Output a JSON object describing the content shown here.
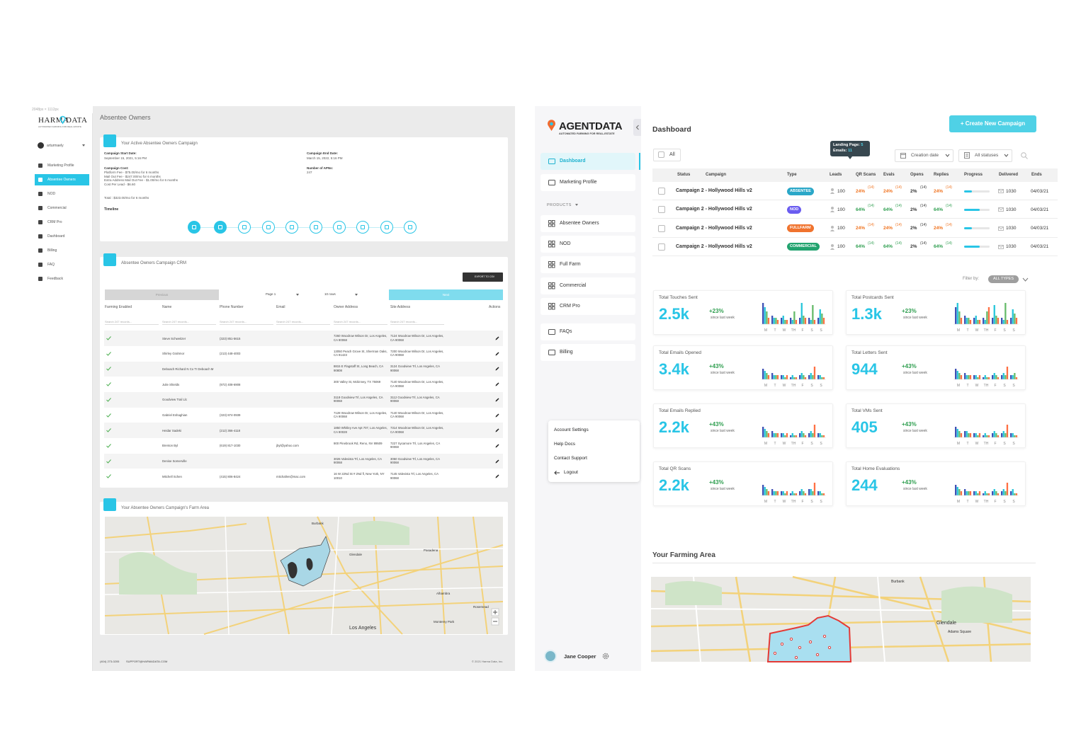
{
  "left_app": {
    "size_note": "2048px × 1112px",
    "logo_left": "HARMA",
    "logo_right": "DATA",
    "tagline": "AUTOMATED FARMING FOR REAL ESTATE",
    "user": "arturmaely",
    "nav": [
      "Marketing Profile",
      "Absentee Owners",
      "NOD",
      "Commercial",
      "CRM Pro",
      "Dashboard",
      "Billing",
      "FAQ",
      "Feedback"
    ],
    "page_title": "Absentee Owners",
    "campaign": {
      "title": "Your Active Absentee Owners Campaign",
      "start_label": "Campaign Start Date:",
      "start": "September 15, 2021, 5:16 PM",
      "end_label": "Campaign End Date:",
      "end": "March 15, 2022, 5:16 PM",
      "cost_label": "Campaign Cost:",
      "cost_lines": [
        "Platform Fee - $75.00/mo for 6 months",
        "Mail Out Fee - $247.00/mo for 6 months",
        "Extra Address Mail Out Fee - $1.00/mo for 6 months",
        "Cost Per Lead - $6.60"
      ],
      "apns_label": "Number of APNs:",
      "apns": "247",
      "total": "Total : $323.00/mo for 6 months",
      "timeline": "Timeline"
    },
    "crm": {
      "title": "Absentee Owners Campaign CRM",
      "export": "EXPORT TO CSV",
      "previous": "Previous",
      "page": "Page 1",
      "page_size": "10 rows",
      "next": "Next",
      "columns": [
        "Farming Enabled",
        "Name",
        "Phone Number",
        "Email",
        "Owner Address",
        "Site Address"
      ],
      "actions": "Actions",
      "search": "Search 247 records...",
      "rows": [
        {
          "name": "Steve Schweitzer",
          "phone": "(323) 851-5615",
          "owner_address": "7260 Woodrow Wilson Dr, Los Angeles, CA 90068",
          "site_address": "7124 Woodrow Wilson Dr, Los Angeles, CA 90068"
        },
        {
          "name": "Shirley Grahmor",
          "phone": "(213) 448-4003",
          "owner_address": "13050 Peach Grove St, Sherman Oaks, CA 91423",
          "site_address": "7200 Woodrow Wilson Dr, Los Angeles, CA 90068"
        },
        {
          "name": "Deboach Richard N Co Tr Deboach M",
          "owner_address": "8815 E Flagstaff St, Long Beach, CA 90808",
          "site_address": "3124 Goodview Trl, Los Angeles, CA 90068"
        },
        {
          "name": "Julie Shields",
          "phone": "(972) 408-6908",
          "owner_address": "300 Valley St, Mckinney, TX 75069",
          "site_address": "7140 Woodrow Wilson Dr, Los Angeles, CA 90068"
        },
        {
          "name": "Goodview Trail Llc",
          "owner_address": "3118 Goodview Trl, Los Angeles, CA 90068",
          "site_address": "3112 Goodview Trl, Los Angeles, CA 90068"
        },
        {
          "name": "Gabriel Eshaghian",
          "phone": "(323) 874-0939",
          "owner_address": "7128 Woodrow Wilson Dr, Los Angeles, CA 90068",
          "site_address": "7140 Woodrow Wilson Dr, Los Angeles, CA 90068"
        },
        {
          "name": "Heidar Sadeki",
          "phone": "(212) 366-4118",
          "owner_address": "1850 Whitley Ave Apt 707, Los Angeles, CA 90028",
          "site_address": "7314 Woodrow Wilson Dr, Los Angeles, CA 90068"
        },
        {
          "name": "Brenton Byl",
          "phone": "(619) 817-1030",
          "email": "jbyl@yahoo.com",
          "owner_address": "900 Pinebrook Rd, Reno, NV 89509",
          "site_address": "7227 Sycamore Trl, Los Angeles, CA 90068"
        },
        {
          "name": "Denise Somerville",
          "owner_address": "3026 Valevista Trl, Los Angeles, CA 90068",
          "site_address": "3050 Goodview Trl, Los Angeles, CA 90068"
        },
        {
          "name": "Mitchell Schen",
          "phone": "(415) 806-8424",
          "email": "mitchallen@mac.com",
          "owner_address": "16 W 22Nd St # 2Nd fl, New York, NY 10010",
          "site_address": "7145 Valevista Trl, Los Angeles, CA 90068"
        }
      ]
    },
    "map": {
      "title": "Your Absentee Owners Campaign's Farm Area",
      "labels": [
        "Burbank",
        "Glendale",
        "Pasadena",
        "Alhambra",
        "Monterey Park",
        "Rosemead",
        "Los Angeles"
      ]
    },
    "footer": {
      "phone": "(404) 273-0205",
      "email": "SUPPORT@HARMADATA.COM",
      "copyright": "© 2021 Harma Data, Inc."
    }
  },
  "right_app": {
    "logo": "AGENTDATA",
    "tagline": "AUTOMATED FARMING FOR REAL-ESTATE",
    "nav_main": [
      "Dashboard",
      "Marketing Profile"
    ],
    "products_label": "PRODUCTS",
    "nav_products": [
      "Absentee Owners",
      "NOD",
      "Full Farm",
      "Commercial",
      "CRM Pro"
    ],
    "nav_other": [
      "FAQs",
      "Billing"
    ],
    "menu": [
      "Account Settings",
      "Help Docs",
      "Contact Support",
      "Logout"
    ],
    "user": "Jane Cooper",
    "title": "Dashboard",
    "create": "+ Create New Campaign",
    "filters": {
      "all": "All",
      "creation": "Creation date",
      "statuses": "All statuses"
    },
    "tooltip": {
      "landing": "Landing Page:",
      "landing_value": "5",
      "emails": "Emails:",
      "emails_value": "11"
    },
    "table": {
      "columns": [
        "Status",
        "Campaign",
        "Type",
        "Leads",
        "QR Scans",
        "Evals",
        "Opens",
        "Replies",
        "Progress",
        "Delivered",
        "Ends"
      ],
      "progress_lim": [
        0,
        100
      ],
      "rows": [
        {
          "campaign": "Campaign 2  - Hollywood Hills v2",
          "type": "ABSENTEE",
          "type_color": "#2aa7c8",
          "trend_color": "#f0731f",
          "leads": "100",
          "qr": "24%",
          "qr_count": "(14)",
          "evals": "24%",
          "evals_count": "(14)",
          "opens": "2%",
          "opens_count": "(14)",
          "replies": "24%",
          "replies_count": "(14)",
          "progress": 30,
          "delivered": "1030",
          "ends": "04/03/21"
        },
        {
          "campaign": "Campaign 2  - Hollywood Hills v2",
          "type": "NOD",
          "type_color": "#6a5cf0",
          "trend_color": "#2e9e4f",
          "leads": "100",
          "qr": "64%",
          "qr_count": "(14)",
          "evals": "64%",
          "evals_count": "(14)",
          "opens": "2%",
          "opens_count": "(14)",
          "replies": "64%",
          "replies_count": "(14)",
          "progress": 62,
          "delivered": "1030",
          "ends": "04/03/21"
        },
        {
          "campaign": "Campaign 2  - Hollywood Hills v2",
          "type": "FULLFARM",
          "type_color": "#f0732e",
          "trend_color": "#f0731f",
          "leads": "100",
          "qr": "24%",
          "qr_count": "(14)",
          "evals": "24%",
          "evals_count": "(14)",
          "opens": "2%",
          "opens_count": "(14)",
          "replies": "24%",
          "replies_count": "(14)",
          "progress": 30,
          "delivered": "1030",
          "ends": "04/03/21"
        },
        {
          "campaign": "Campaign 2  - Hollywood Hills v2",
          "type": "COMMERCIAL",
          "type_color": "#22a36f",
          "trend_color": "#2e9e4f",
          "leads": "100",
          "qr": "64%",
          "qr_count": "(14)",
          "evals": "64%",
          "evals_count": "(14)",
          "opens": "2%",
          "opens_count": "(14)",
          "replies": "64%",
          "replies_count": "(14)",
          "progress": 62,
          "delivered": "1030",
          "ends": "04/03/21"
        }
      ]
    },
    "filter_label": "Filter by:",
    "filter_value": "ALL TYPES",
    "mini_chart": {
      "days": [
        "M",
        "T",
        "W",
        "TH",
        "F",
        "S",
        "S"
      ],
      "colors": [
        "#3f51b5",
        "#26c6da",
        "#66bb6a",
        "#ff7043"
      ],
      "ylim": [
        0,
        10
      ]
    },
    "stats": [
      {
        "title": "Total Touches Sent",
        "value": "2.5k",
        "change": "+23%",
        "since": "since last week",
        "bars": [
          [
            10,
            8,
            6,
            3
          ],
          [
            4,
            3,
            3,
            2
          ],
          [
            3,
            4,
            2,
            2
          ],
          [
            3,
            2,
            6,
            2
          ],
          [
            3,
            10,
            4,
            3
          ],
          [
            3,
            2,
            9,
            2
          ],
          [
            3,
            7,
            5,
            3
          ]
        ]
      },
      {
        "title": "Total Postcards Sent",
        "value": "1.3k",
        "change": "+23%",
        "since": "since last week",
        "bars": [
          [
            8,
            10,
            6,
            3
          ],
          [
            4,
            3,
            3,
            2
          ],
          [
            3,
            4,
            2,
            2
          ],
          [
            3,
            2,
            6,
            8
          ],
          [
            3,
            9,
            4,
            3
          ],
          [
            3,
            2,
            10,
            2
          ],
          [
            3,
            7,
            5,
            3
          ]
        ]
      },
      {
        "title": "Total Emails Opened",
        "value": "3.4k",
        "change": "+43%",
        "since": "since last week",
        "bars": [
          [
            5,
            4,
            3,
            2
          ],
          [
            3,
            2,
            2,
            2
          ],
          [
            2,
            2,
            1,
            2
          ],
          [
            1,
            2,
            1,
            1
          ],
          [
            2,
            3,
            2,
            1
          ],
          [
            2,
            3,
            2,
            6
          ],
          [
            2,
            2,
            1,
            1
          ]
        ]
      },
      {
        "title": "Total Letters Sent",
        "value": "944",
        "change": "+43%",
        "since": "since last week",
        "bars": [
          [
            5,
            4,
            3,
            2
          ],
          [
            3,
            2,
            2,
            2
          ],
          [
            2,
            2,
            1,
            2
          ],
          [
            1,
            2,
            1,
            1
          ],
          [
            2,
            3,
            2,
            1
          ],
          [
            2,
            3,
            2,
            6
          ],
          [
            2,
            2,
            3,
            1
          ]
        ]
      },
      {
        "title": "Total Emails Replied",
        "value": "2.2k",
        "change": "+43%",
        "since": "since last week",
        "bars": [
          [
            5,
            4,
            3,
            2
          ],
          [
            3,
            2,
            2,
            2
          ],
          [
            2,
            2,
            1,
            2
          ],
          [
            1,
            2,
            1,
            1
          ],
          [
            2,
            3,
            2,
            1
          ],
          [
            2,
            3,
            2,
            6
          ],
          [
            2,
            2,
            1,
            1
          ]
        ]
      },
      {
        "title": "Total VMs Sent",
        "value": "405",
        "change": "+43%",
        "since": "since last week",
        "bars": [
          [
            5,
            4,
            3,
            2
          ],
          [
            3,
            3,
            2,
            2
          ],
          [
            2,
            2,
            1,
            2
          ],
          [
            1,
            2,
            1,
            1
          ],
          [
            2,
            3,
            2,
            1
          ],
          [
            2,
            3,
            2,
            6
          ],
          [
            2,
            2,
            1,
            1
          ]
        ]
      },
      {
        "title": "Total QR Scans",
        "value": "2.2k",
        "change": "+43%",
        "since": "since last week",
        "bars": [
          [
            5,
            4,
            3,
            2
          ],
          [
            3,
            2,
            2,
            2
          ],
          [
            2,
            2,
            1,
            2
          ],
          [
            1,
            2,
            1,
            1
          ],
          [
            2,
            3,
            2,
            1
          ],
          [
            3,
            3,
            2,
            6
          ],
          [
            2,
            2,
            1,
            1
          ]
        ]
      },
      {
        "title": "Total Home Evaluations",
        "value": "244",
        "change": "+43%",
        "since": "since last week",
        "bars": [
          [
            5,
            4,
            3,
            2
          ],
          [
            3,
            2,
            2,
            2
          ],
          [
            2,
            2,
            1,
            2
          ],
          [
            1,
            2,
            1,
            1
          ],
          [
            2,
            3,
            2,
            1
          ],
          [
            2,
            3,
            2,
            6
          ],
          [
            2,
            3,
            1,
            1
          ]
        ]
      }
    ],
    "farming_title": "Your Farming Area",
    "map_labels": [
      "Burbank",
      "Glendale",
      "Adams Square"
    ]
  }
}
